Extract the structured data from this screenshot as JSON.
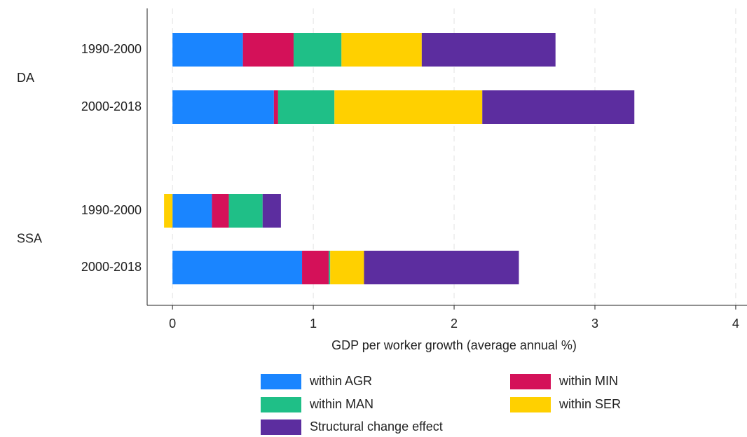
{
  "chart_data": {
    "type": "stacked-barh",
    "x_label": "GDP per worker growth (average annual %)",
    "groups": [
      "DA",
      "SSA"
    ],
    "categories": [
      "1990-2000",
      "2000-2018",
      "1990-2000",
      "2000-2018"
    ],
    "series": [
      {
        "name": "within AGR",
        "color": "#1a85ff",
        "values": [
          0.5,
          0.72,
          0.28,
          0.92
        ]
      },
      {
        "name": "within MIN",
        "color": "#d41159",
        "values": [
          0.36,
          0.03,
          0.12,
          0.19
        ]
      },
      {
        "name": "within MAN",
        "color": "#1fbf87",
        "values": [
          0.34,
          0.4,
          0.24,
          0.01
        ]
      },
      {
        "name": "within SER",
        "color": "#ffd000",
        "values": [
          0.57,
          1.05,
          -0.06,
          0.24
        ]
      },
      {
        "name": "Structural change effect",
        "color": "#5c2d9f",
        "values": [
          0.95,
          1.08,
          0.13,
          1.1
        ]
      }
    ],
    "xlim": [
      -0.18,
      4.08
    ],
    "xticks": [
      0,
      1,
      2,
      3,
      4
    ],
    "grid": true
  }
}
